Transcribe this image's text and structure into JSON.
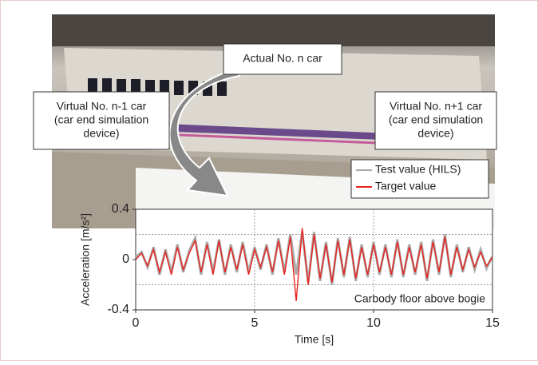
{
  "callouts": [
    {
      "lines": [
        "Actual No. n car"
      ]
    },
    {
      "lines": [
        "Virtual No. n-1 car",
        "(car end simulation",
        "device)"
      ]
    },
    {
      "lines": [
        "Virtual No. n+1 car",
        "(car end simulation",
        "device)"
      ]
    }
  ],
  "chart_data": {
    "type": "line",
    "xlabel": "Time [s]",
    "ylabel": "Acceleration [m/s²]",
    "annotation": "Carbody floor above bogie",
    "x": [
      0,
      0.25,
      0.5,
      0.75,
      1,
      1.25,
      1.5,
      1.75,
      2,
      2.25,
      2.5,
      2.75,
      3,
      3.25,
      3.5,
      3.75,
      4,
      4.25,
      4.5,
      4.75,
      5,
      5.25,
      5.5,
      5.75,
      6,
      6.25,
      6.5,
      6.75,
      7,
      7.25,
      7.5,
      7.75,
      8,
      8.25,
      8.5,
      8.75,
      9,
      9.25,
      9.5,
      9.75,
      10,
      10.25,
      10.5,
      10.75,
      11,
      11.25,
      11.5,
      11.75,
      12,
      12.25,
      12.5,
      12.75,
      13,
      13.25,
      13.5,
      13.75,
      14,
      14.25,
      14.5,
      14.75,
      15
    ],
    "series": [
      {
        "name": "Test value (HILS)",
        "color": "#aaaaaa",
        "values": [
          0.02,
          0.06,
          -0.06,
          0.1,
          -0.12,
          0.08,
          -0.1,
          0.12,
          -0.1,
          0.07,
          0.17,
          -0.12,
          0.14,
          -0.1,
          0.16,
          -0.12,
          0.12,
          -0.1,
          0.14,
          -0.1,
          0.1,
          -0.08,
          0.12,
          -0.12,
          0.17,
          -0.1,
          0.2,
          -0.12,
          0.22,
          -0.18,
          0.22,
          -0.17,
          0.14,
          -0.2,
          0.17,
          -0.14,
          0.18,
          -0.17,
          0.12,
          -0.14,
          0.14,
          -0.12,
          0.12,
          -0.14,
          0.16,
          -0.14,
          0.12,
          -0.12,
          0.14,
          -0.17,
          0.16,
          -0.12,
          0.2,
          -0.14,
          0.12,
          -0.1,
          0.1,
          -0.08,
          0.08,
          -0.07,
          0.03
        ]
      },
      {
        "name": "Target value",
        "color": "#e8231e",
        "values": [
          0,
          0.05,
          -0.05,
          0.08,
          -0.1,
          0.06,
          -0.12,
          0.1,
          -0.08,
          0.05,
          0.15,
          -0.1,
          0.12,
          -0.12,
          0.15,
          -0.1,
          0.1,
          -0.08,
          0.12,
          -0.12,
          0.08,
          -0.06,
          0.1,
          -0.1,
          0.15,
          -0.12,
          0.18,
          -0.33,
          0.25,
          -0.2,
          0.2,
          -0.15,
          0.12,
          -0.18,
          0.15,
          -0.12,
          0.16,
          -0.15,
          0.1,
          -0.12,
          0.12,
          -0.1,
          0.1,
          -0.12,
          0.14,
          -0.12,
          0.1,
          -0.1,
          0.12,
          -0.15,
          0.14,
          -0.1,
          0.18,
          -0.12,
          0.1,
          -0.08,
          0.08,
          -0.06,
          0.06,
          -0.05,
          0.02
        ]
      }
    ],
    "xlim": [
      0,
      15
    ],
    "xticks": [
      0,
      5,
      10,
      15
    ],
    "xgrid": [
      5,
      10
    ],
    "ylim": [
      -0.4,
      0.4
    ],
    "yticks": [
      -0.4,
      0,
      0.4
    ],
    "ygrid": [
      -0.2,
      0.2
    ],
    "legend": "upper right"
  }
}
